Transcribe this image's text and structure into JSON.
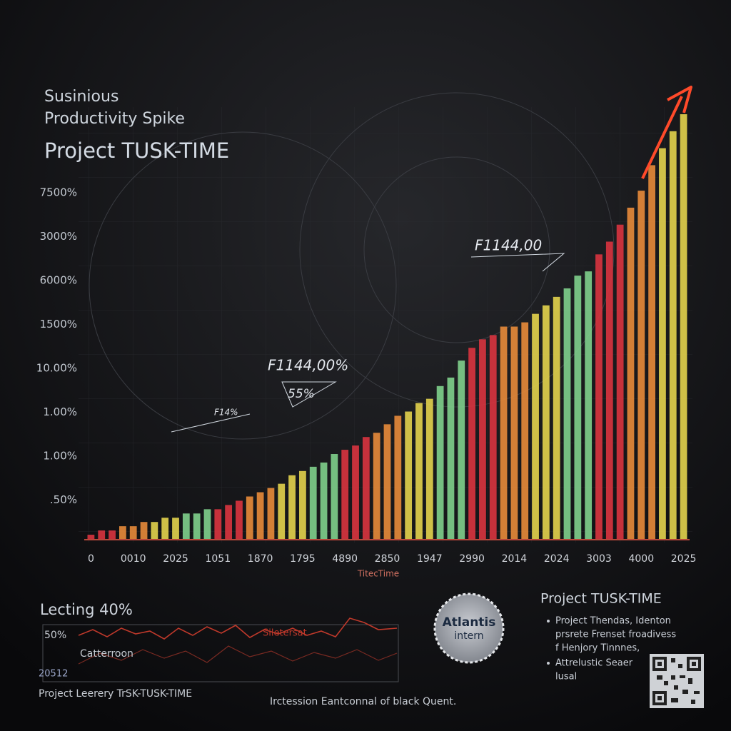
{
  "chart_data": {
    "type": "bar",
    "title": "Susinious",
    "subtitle": "Productivity Spike",
    "heading": "Project TUSK-TIME",
    "x_label": "TitecTime",
    "y_labels": [
      "7500%",
      "3000%",
      "6000%",
      "1500%",
      "10.00%",
      "1.00%",
      "1.00%",
      ".50%"
    ],
    "categories": [
      "0",
      null,
      null,
      null,
      "0010",
      null,
      null,
      null,
      "2025",
      null,
      null,
      null,
      "1051",
      null,
      null,
      null,
      "1870",
      null,
      null,
      null,
      "1795",
      null,
      null,
      null,
      "4890",
      null,
      null,
      null,
      "2850",
      null,
      null,
      null,
      "1947",
      null,
      null,
      null,
      "2990",
      null,
      null,
      null,
      "2014",
      null,
      null,
      null,
      "2024",
      null,
      null,
      null,
      "3003",
      null,
      null,
      null,
      "4000",
      null,
      null,
      null,
      "2025"
    ],
    "values": [
      1,
      2,
      2,
      3,
      3,
      4,
      4,
      5,
      5,
      6,
      6,
      7,
      7,
      8,
      9,
      10,
      11,
      12,
      13,
      15,
      16,
      17,
      18,
      20,
      21,
      22,
      24,
      25,
      27,
      29,
      30,
      32,
      33,
      36,
      38,
      42,
      45,
      47,
      48,
      50,
      50,
      51,
      53,
      55,
      57,
      59,
      62,
      63,
      67,
      70,
      74,
      78,
      82,
      88,
      92,
      96,
      100
    ],
    "ylim": [
      0,
      100
    ],
    "palette": [
      "#d9343f",
      "#e88b3a",
      "#e3d34d",
      "#7fd08c"
    ],
    "annotations": [
      "F1144,00",
      "F1144,00%",
      "55%",
      "F14%"
    ]
  },
  "footer": {
    "left_title": "Lecting 40%",
    "mini_ylabel": "50%",
    "mini_series": "Catterroon",
    "mini_note": "Siletersat",
    "mini_date": "20512",
    "left_caption": "Project Leerery TrSK-TUSK-TIME",
    "center_note": "Irctession Eantconnal of black Quent.",
    "badge": [
      "Atlantis",
      "intern"
    ],
    "right_title": "Project TUSK-TIME",
    "bullets": [
      [
        "Project Thendas, Identon",
        "prsrete Frenset froadivess",
        "f Henjory Tinnnes,"
      ],
      [
        "Attrelustic Seaer",
        "lusal"
      ]
    ]
  }
}
